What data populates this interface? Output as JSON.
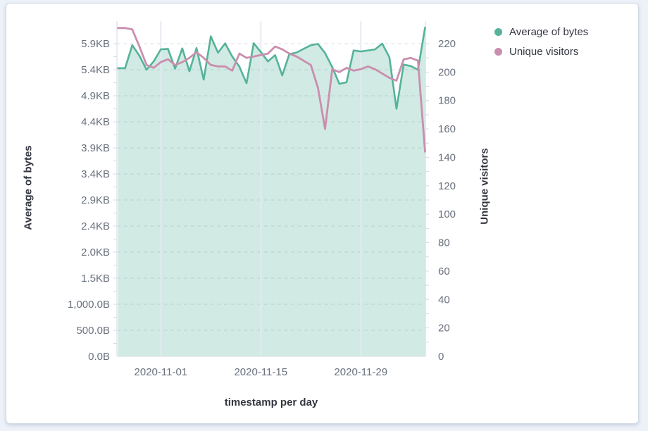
{
  "page": {
    "background": "#edf1f8"
  },
  "panel": {
    "background": "#ffffff",
    "border_color": "#d0d9e6"
  },
  "legend": {
    "position": "top-right",
    "items": [
      {
        "label": "Average of bytes",
        "color": "#54B399"
      },
      {
        "label": "Unique visitors",
        "color": "#CA8EAE"
      }
    ]
  },
  "chart_data": {
    "type": "line",
    "title": "",
    "xlabel": "timestamp per day",
    "x": [
      "2020-10-26",
      "2020-10-27",
      "2020-10-28",
      "2020-10-29",
      "2020-10-30",
      "2020-10-31",
      "2020-11-01",
      "2020-11-02",
      "2020-11-03",
      "2020-11-04",
      "2020-11-05",
      "2020-11-06",
      "2020-11-07",
      "2020-11-08",
      "2020-11-09",
      "2020-11-10",
      "2020-11-11",
      "2020-11-12",
      "2020-11-13",
      "2020-11-14",
      "2020-11-15",
      "2020-11-16",
      "2020-11-17",
      "2020-11-18",
      "2020-11-19",
      "2020-11-20",
      "2020-11-21",
      "2020-11-22",
      "2020-11-23",
      "2020-11-24",
      "2020-11-25",
      "2020-11-26",
      "2020-11-27",
      "2020-11-28",
      "2020-11-29",
      "2020-11-30",
      "2020-12-01",
      "2020-12-02",
      "2020-12-03",
      "2020-12-04",
      "2020-12-05",
      "2020-12-06",
      "2020-12-07",
      "2020-12-08"
    ],
    "x_tick_labels": [
      "2020-11-01",
      "2020-11-15",
      "2020-11-29"
    ],
    "series": [
      {
        "name": "Average of bytes",
        "axis": "left",
        "style": "area",
        "color": "#54B399",
        "fill_opacity": 0.27,
        "values": [
          5530,
          5530,
          5970,
          5770,
          5500,
          5660,
          5890,
          5900,
          5520,
          5910,
          5470,
          5915,
          5310,
          6140,
          5825,
          6005,
          5755,
          5560,
          5240,
          6010,
          5840,
          5660,
          5780,
          5390,
          5800,
          5830,
          5900,
          5970,
          5995,
          5820,
          5550,
          5230,
          5260,
          5870,
          5850,
          5870,
          5890,
          6000,
          5740,
          4750,
          5600,
          5570,
          5500,
          6310
        ]
      },
      {
        "name": "Unique visitors",
        "axis": "right",
        "style": "line",
        "color": "#CA8EAE",
        "values": [
          231,
          231,
          230,
          218,
          205,
          203,
          207,
          209,
          205,
          207,
          210,
          214,
          210,
          205,
          204,
          204,
          201,
          213,
          210,
          211,
          212,
          213,
          218,
          216,
          213,
          211,
          208,
          205,
          189,
          160,
          202,
          200,
          203,
          201,
          202,
          204,
          202,
          199,
          196,
          194,
          209,
          210,
          208,
          144
        ]
      }
    ],
    "left_axis": {
      "title": "Average of bytes",
      "tick_values": [
        0,
        500,
        1000,
        1500,
        2000,
        2500,
        3000,
        3500,
        4000,
        4500,
        5000,
        5500,
        6000
      ],
      "tick_labels": [
        "0.0B",
        "500.0B",
        "1,000.0B",
        "1.5KB",
        "2.0KB",
        "2.4KB",
        "2.9KB",
        "3.4KB",
        "3.9KB",
        "4.4KB",
        "4.9KB",
        "5.4KB",
        "5.9KB"
      ],
      "minor_tick_step": 250
    },
    "right_axis": {
      "title": "Unique visitors",
      "tick_values": [
        0,
        20,
        40,
        60,
        80,
        100,
        120,
        140,
        160,
        180,
        200,
        220
      ],
      "tick_labels": [
        "0",
        "20",
        "40",
        "60",
        "80",
        "100",
        "120",
        "140",
        "160",
        "180",
        "200",
        "220"
      ],
      "minor_tick_step": 10
    },
    "grid": {
      "horizontal": "dashed",
      "vertical": "solid",
      "legend_position": "right"
    },
    "colors": {
      "grid_dashed": "#d9dfe8",
      "grid_vertical": "#e4eaf1",
      "axis_line": "#d3dae6",
      "tick_label": "#69707D",
      "axis_title": "#343741"
    }
  }
}
